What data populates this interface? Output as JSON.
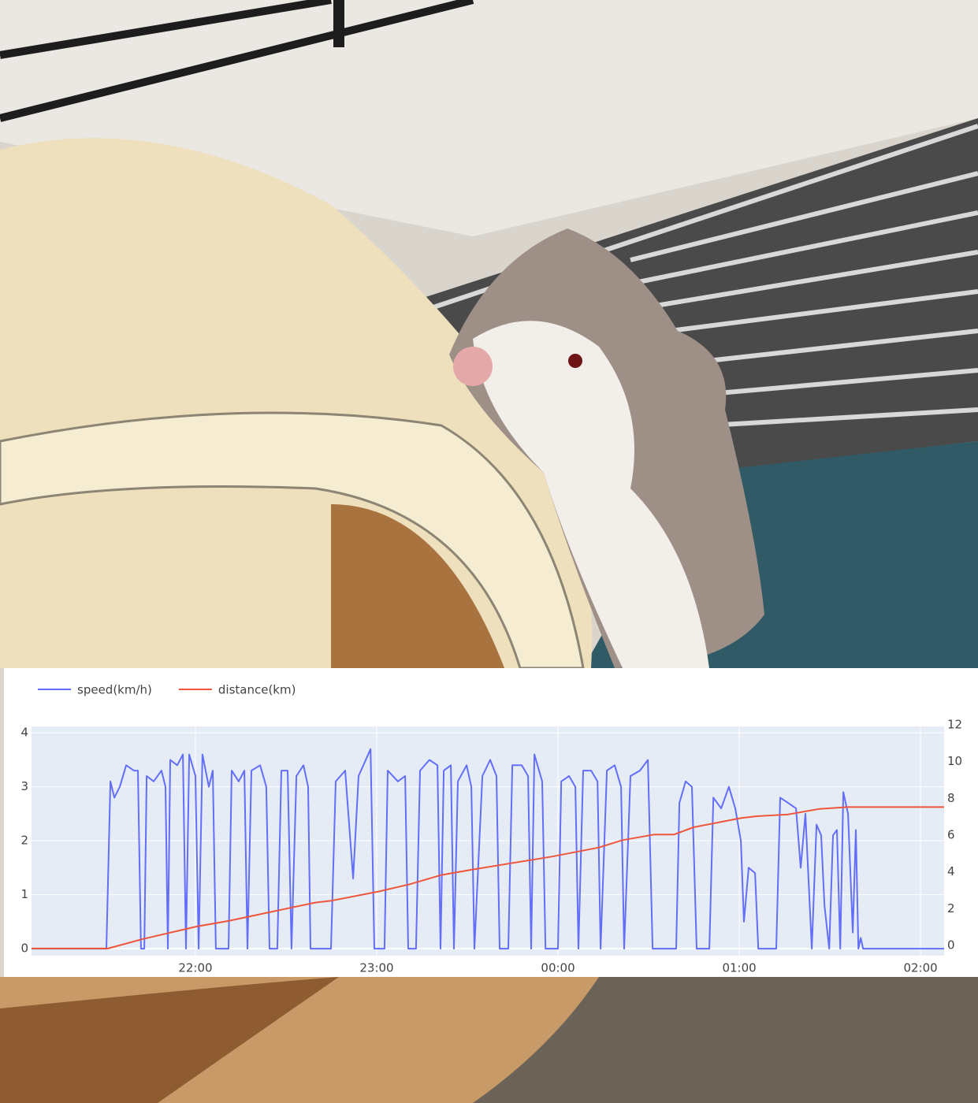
{
  "chart_data": {
    "type": "line",
    "xlim": [
      21.096,
      26.13
    ],
    "xticks": [
      {
        "value": 22,
        "label": "22:00"
      },
      {
        "value": 23,
        "label": "23:00"
      },
      {
        "value": 24,
        "label": "00:00"
      },
      {
        "value": 25,
        "label": "01:00"
      },
      {
        "value": 26,
        "label": "02:00"
      }
    ],
    "ylim": [
      -0.13,
      4.12
    ],
    "yticks": [
      0,
      1,
      2,
      3,
      4
    ],
    "y2lim": [
      -0.39,
      12.09
    ],
    "y2ticks": [
      0,
      2,
      4,
      6,
      8,
      10,
      12
    ],
    "grid": true,
    "legend": "top-left",
    "series": [
      {
        "name": "speed(km/h)",
        "color": "#636efa",
        "x": [
          21.096,
          21.509,
          21.531,
          21.553,
          21.583,
          21.618,
          21.661,
          21.683,
          21.7,
          21.718,
          21.731,
          21.77,
          21.813,
          21.835,
          21.848,
          21.861,
          21.9,
          21.931,
          21.948,
          21.966,
          22.0,
          22.018,
          22.039,
          22.074,
          22.096,
          22.113,
          22.183,
          22.2,
          22.239,
          22.27,
          22.287,
          22.309,
          22.357,
          22.391,
          22.409,
          22.452,
          22.474,
          22.509,
          22.53,
          22.557,
          22.596,
          22.622,
          22.635,
          22.748,
          22.774,
          22.826,
          22.87,
          22.9,
          22.966,
          22.987,
          23.043,
          23.061,
          23.117,
          23.157,
          23.174,
          23.217,
          23.239,
          23.291,
          23.335,
          23.352,
          23.37,
          23.409,
          23.426,
          23.448,
          23.496,
          23.522,
          23.539,
          23.583,
          23.626,
          23.661,
          23.678,
          23.726,
          23.748,
          23.8,
          23.835,
          23.852,
          23.87,
          23.913,
          23.931,
          24.0,
          24.018,
          24.061,
          24.096,
          24.113,
          24.139,
          24.183,
          24.218,
          24.235,
          24.27,
          24.313,
          24.348,
          24.365,
          24.4,
          24.452,
          24.496,
          24.522,
          24.652,
          24.67,
          24.704,
          24.739,
          24.765,
          24.835,
          24.857,
          24.9,
          24.943,
          24.978,
          25.009,
          25.026,
          25.052,
          25.087,
          25.105,
          25.204,
          25.226,
          25.27,
          25.313,
          25.339,
          25.365,
          25.4,
          25.426,
          25.452,
          25.47,
          25.496,
          25.517,
          25.539,
          25.557,
          25.574,
          25.6,
          25.626,
          25.643,
          25.657,
          25.67,
          25.683,
          26.13
        ],
        "values": [
          0,
          0,
          3.1,
          2.8,
          3.0,
          3.4,
          3.3,
          3.3,
          0,
          0,
          3.2,
          3.1,
          3.3,
          3.0,
          0,
          3.5,
          3.4,
          3.6,
          0,
          3.6,
          3.2,
          0,
          3.6,
          3.0,
          3.3,
          0,
          0,
          3.3,
          3.1,
          3.3,
          0,
          3.3,
          3.4,
          3.0,
          0,
          0,
          3.3,
          3.3,
          0,
          3.2,
          3.4,
          3.0,
          0,
          0,
          3.1,
          3.3,
          1.3,
          3.2,
          3.7,
          0,
          0,
          3.3,
          3.1,
          3.2,
          0,
          0,
          3.3,
          3.5,
          3.4,
          0,
          3.3,
          3.4,
          0,
          3.1,
          3.4,
          3.0,
          0,
          3.2,
          3.5,
          3.2,
          0,
          0,
          3.4,
          3.4,
          3.2,
          0,
          3.6,
          3.1,
          0,
          0,
          3.1,
          3.2,
          3.0,
          0,
          3.3,
          3.3,
          3.1,
          0,
          3.3,
          3.4,
          3.0,
          0,
          3.2,
          3.3,
          3.5,
          0,
          0,
          2.7,
          3.1,
          3.0,
          0,
          0,
          2.8,
          2.6,
          3.0,
          2.6,
          2.0,
          0.5,
          1.5,
          1.4,
          0,
          0,
          2.8,
          2.7,
          2.6,
          1.5,
          2.5,
          0,
          2.3,
          2.1,
          0.8,
          0,
          2.1,
          2.2,
          0,
          2.9,
          2.5,
          0.3,
          2.2,
          0,
          0.2,
          0,
          0
        ]
      },
      {
        "name": "distance(km)",
        "color": "#ef553b",
        "axis": "y2",
        "x": [
          21.096,
          21.518,
          21.704,
          22.009,
          22.183,
          22.661,
          22.748,
          23.009,
          23.183,
          23.357,
          23.53,
          23.965,
          24.226,
          24.357,
          24.53,
          24.639,
          24.748,
          25.009,
          25.096,
          25.27,
          25.443,
          25.596,
          26.13
        ],
        "values": [
          0,
          0,
          0.5,
          1.2,
          1.5,
          2.5,
          2.6,
          3.1,
          3.5,
          4.0,
          4.3,
          5.0,
          5.5,
          5.9,
          6.2,
          6.2,
          6.6,
          7.1,
          7.2,
          7.3,
          7.6,
          7.7,
          7.7
        ]
      }
    ]
  }
}
